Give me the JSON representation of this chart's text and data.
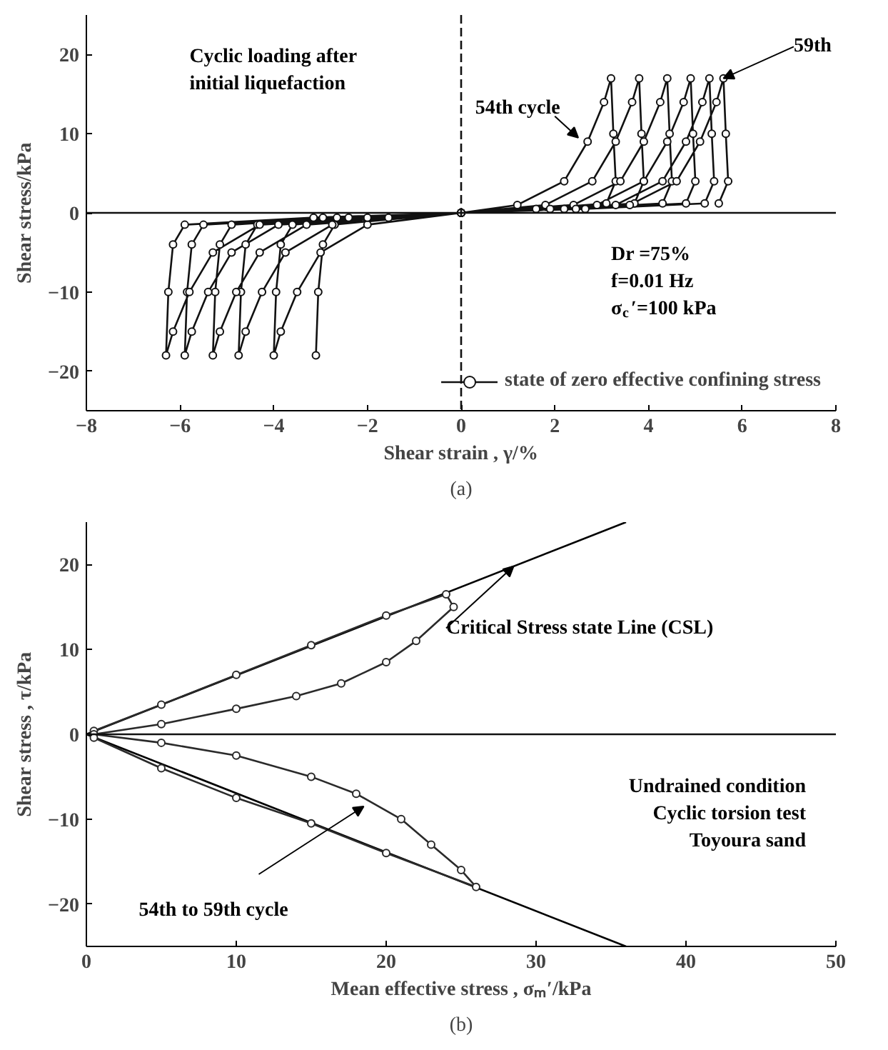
{
  "chart_data": [
    {
      "type": "line",
      "title": "(a)",
      "xlabel": "Shear strain , γ/%",
      "ylabel": "Shear stress/kPa",
      "xlim": [
        -8,
        8
      ],
      "ylim": [
        -25,
        25
      ],
      "xticks": [
        -8,
        -6,
        -4,
        -2,
        0,
        2,
        4,
        6,
        8
      ],
      "yticks": [
        -20,
        -10,
        0,
        10,
        20
      ],
      "grid": false,
      "legend": "bottom right",
      "marker": "circle",
      "line_style": "solid",
      "series": [
        {
          "name": "state of zero effective confining stress",
          "color": "#111111",
          "x": [
            -3.1,
            -3.05,
            -2.95,
            -2.7,
            -1.55,
            0,
            1.2,
            2.2,
            2.7,
            3.05,
            3.2,
            3.25,
            3.3,
            3.1,
            1.6,
            0,
            -2.0,
            -3.0,
            -3.5,
            -3.85,
            -4.0,
            -3.95,
            -3.85,
            -3.6,
            -2.0,
            0,
            1.8,
            2.8,
            3.3,
            3.65,
            3.8,
            3.85,
            3.9,
            3.7,
            1.9,
            0,
            -2.75,
            -3.75,
            -4.25,
            -4.6,
            -4.75,
            -4.7,
            -4.6,
            -4.35,
            -2.4,
            0,
            2.4,
            3.4,
            3.9,
            4.25,
            4.4,
            4.45,
            4.5,
            4.3,
            2.2,
            0,
            -3.3,
            -4.3,
            -4.8,
            -5.15,
            -5.3,
            -5.25,
            -5.15,
            -4.9,
            -2.65,
            0,
            2.9,
            3.9,
            4.4,
            4.75,
            4.9,
            4.95,
            5.0,
            4.8,
            2.45,
            0,
            -3.9,
            -4.9,
            -5.4,
            -5.75,
            -5.9,
            -5.85,
            -5.75,
            -5.5,
            -2.95,
            0,
            3.3,
            4.3,
            4.8,
            5.15,
            5.3,
            5.35,
            5.4,
            5.2,
            2.65,
            0,
            -4.3,
            -5.3,
            -5.8,
            -6.15,
            -6.3,
            -6.25,
            -6.15,
            -5.9,
            -3.15,
            0,
            3.6,
            4.6,
            5.1,
            5.45,
            5.6,
            5.65,
            5.7,
            5.5
          ],
          "values": [
            -18,
            -10,
            -4,
            -1.5,
            -0.6,
            0,
            1,
            4,
            9,
            14,
            17,
            10,
            4,
            1.2,
            0.5,
            0,
            -1.5,
            -5,
            -10,
            -15,
            -18,
            -10,
            -4,
            -1.5,
            -0.6,
            0,
            1,
            4,
            9,
            14,
            17,
            10,
            4,
            1.2,
            0.5,
            0,
            -1.5,
            -5,
            -10,
            -15,
            -18,
            -10,
            -4,
            -1.5,
            -0.6,
            0,
            1,
            4,
            9,
            14,
            17,
            10,
            4,
            1.2,
            0.5,
            0,
            -1.5,
            -5,
            -10,
            -15,
            -18,
            -10,
            -4,
            -1.5,
            -0.6,
            0,
            1,
            4,
            9,
            14,
            17,
            10,
            4,
            1.2,
            0.5,
            0,
            -1.5,
            -5,
            -10,
            -15,
            -18,
            -10,
            -4,
            -1.5,
            -0.6,
            0,
            1,
            4,
            9,
            14,
            17,
            10,
            4,
            1.2,
            0.5,
            0,
            -1.5,
            -5,
            -10,
            -15,
            -18,
            -10,
            -4,
            -1.5,
            -0.6,
            0,
            1,
            4,
            9,
            14,
            17,
            10,
            4,
            1.2
          ]
        }
      ],
      "ref_lines": [
        {
          "axis": "x",
          "value": 0,
          "line_style": "dashed",
          "color": "#111111"
        },
        {
          "axis": "y",
          "value": 0,
          "line_style": "solid",
          "color": "#111111"
        }
      ],
      "annotations": [
        "Cyclic loading after\ninitial  liquefaction",
        "54th cycle",
        {
          "text": "59th",
          "x": 5.6,
          "y": 17
        },
        "Dr =75%\nf=0.01  Hz\nσ$_{c}$′=100 kPa"
      ]
    },
    {
      "type": "line",
      "title": "(b)",
      "xlabel": "Mean effective stress , σₘ′/kPa",
      "ylabel": "Shear stress , τ/kPa",
      "xlim": [
        0,
        50
      ],
      "ylim": [
        -25,
        25
      ],
      "xticks": [
        0,
        10,
        20,
        30,
        40,
        50
      ],
      "yticks": [
        -20,
        -10,
        0,
        10,
        20
      ],
      "grid": false,
      "legend": false,
      "line_style": "solid",
      "series": [
        {
          "color": "#000000",
          "marker": "none",
          "x": [
            36,
            0,
            36
          ],
          "values": [
            25,
            0,
            -25
          ]
        },
        {
          "color": "#2a2a2a",
          "marker": "circle",
          "x": [
            0.5,
            5,
            10,
            15,
            20,
            24,
            24.5,
            22,
            20,
            17,
            14,
            10,
            5,
            0.5,
            5,
            10,
            15,
            18,
            21,
            23,
            25,
            26,
            20,
            15,
            10,
            5,
            0.5
          ],
          "values": [
            0.4,
            3.5,
            7,
            10.5,
            14,
            16.5,
            15,
            11,
            8.5,
            6,
            4.5,
            3,
            1.2,
            0,
            -1,
            -2.5,
            -5,
            -7,
            -10,
            -13,
            -16,
            -18,
            -14,
            -10.5,
            -7.5,
            -4,
            -0.4
          ]
        }
      ],
      "ref_lines": [
        {
          "axis": "y",
          "value": 0,
          "line_style": "solid",
          "color": "#111111"
        }
      ],
      "annotations": [
        {
          "text": "Critical Stress state Line (CSL)",
          "x": 28.5,
          "y": 19.8
        },
        "Undrained condition\nCyclic torsion test\nToyoura sand",
        "54th to 59th cycle"
      ]
    }
  ]
}
